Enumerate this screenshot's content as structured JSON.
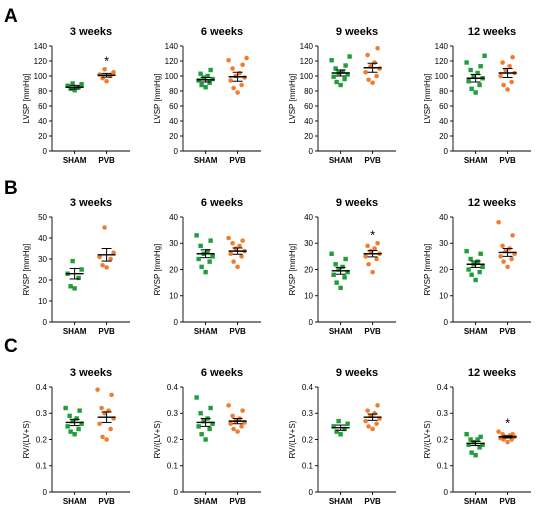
{
  "colors": {
    "sham": "#1f9e3a",
    "pvb": "#f07d2e"
  },
  "panel_labels": [
    "A",
    "B",
    "C"
  ],
  "chart_data": [
    {
      "type": "scatter",
      "panel": "A",
      "title": "3 weeks",
      "ylabel": "LVSP [mmHg]",
      "ylim": [
        0,
        140
      ],
      "yticks": [
        0,
        20,
        40,
        60,
        80,
        100,
        120,
        140
      ],
      "categories": [
        "SHAM",
        "PVB"
      ],
      "series": [
        {
          "category": "SHAM",
          "values": [
            81,
            83,
            85,
            87,
            89,
            90
          ],
          "mean": 85,
          "sem": 2.5
        },
        {
          "category": "PVB",
          "values": [
            93,
            97,
            100,
            102,
            105,
            109
          ],
          "mean": 101,
          "sem": 2.5
        }
      ],
      "annotation": "*"
    },
    {
      "type": "scatter",
      "panel": "A",
      "title": "6 weeks",
      "ylabel": "LVSP [mmHg]",
      "ylim": [
        0,
        140
      ],
      "yticks": [
        0,
        20,
        40,
        60,
        80,
        100,
        120,
        140
      ],
      "categories": [
        "SHAM",
        "PVB"
      ],
      "series": [
        {
          "category": "SHAM",
          "values": [
            85,
            88,
            91,
            94,
            96,
            98,
            100,
            103,
            108
          ],
          "mean": 95,
          "sem": 3
        },
        {
          "category": "PVB",
          "values": [
            78,
            84,
            88,
            94,
            98,
            100,
            104,
            110,
            115,
            121,
            124
          ],
          "mean": 99,
          "sem": 6
        }
      ],
      "annotation": ""
    },
    {
      "type": "scatter",
      "panel": "A",
      "title": "9 weeks",
      "ylabel": "LVSP [mmHg]",
      "ylim": [
        0,
        140
      ],
      "yticks": [
        0,
        20,
        40,
        60,
        80,
        100,
        120,
        140
      ],
      "categories": [
        "SHAM",
        "PVB"
      ],
      "series": [
        {
          "category": "SHAM",
          "values": [
            88,
            92,
            96,
            99,
            102,
            104,
            106,
            110,
            114,
            121,
            126
          ],
          "mean": 104,
          "sem": 4
        },
        {
          "category": "PVB",
          "values": [
            91,
            95,
            100,
            105,
            110,
            113,
            118,
            128,
            137
          ],
          "mean": 111,
          "sem": 6
        }
      ],
      "annotation": ""
    },
    {
      "type": "scatter",
      "panel": "A",
      "title": "12 weeks",
      "ylabel": "LVSP [mmHg]",
      "ylim": [
        0,
        140
      ],
      "yticks": [
        0,
        20,
        40,
        60,
        80,
        100,
        120,
        140
      ],
      "categories": [
        "SHAM",
        "PVB"
      ],
      "series": [
        {
          "category": "SHAM",
          "values": [
            78,
            83,
            88,
            93,
            97,
            100,
            104,
            108,
            113,
            118,
            127
          ],
          "mean": 97,
          "sem": 5
        },
        {
          "category": "PVB",
          "values": [
            82,
            88,
            92,
            100,
            104,
            108,
            113,
            118,
            125
          ],
          "mean": 104,
          "sem": 6
        }
      ],
      "annotation": ""
    },
    {
      "type": "scatter",
      "panel": "B",
      "title": "3 weeks",
      "ylabel": "RVSP [mmHg]",
      "ylim": [
        0,
        50
      ],
      "yticks": [
        0,
        10,
        20,
        30,
        40,
        50
      ],
      "categories": [
        "SHAM",
        "PVB"
      ],
      "series": [
        {
          "category": "SHAM",
          "values": [
            16,
            17,
            21,
            23,
            25,
            29
          ],
          "mean": 23,
          "sem": 2.5
        },
        {
          "category": "PVB",
          "values": [
            26,
            27,
            30,
            31,
            33,
            45
          ],
          "mean": 32,
          "sem": 3
        }
      ],
      "annotation": ""
    },
    {
      "type": "scatter",
      "panel": "B",
      "title": "6 weeks",
      "ylabel": "RVSP [mmHg]",
      "ylim": [
        0,
        40
      ],
      "yticks": [
        0,
        10,
        20,
        30,
        40
      ],
      "categories": [
        "SHAM",
        "PVB"
      ],
      "series": [
        {
          "category": "SHAM",
          "values": [
            19,
            21,
            23,
            24,
            25,
            26,
            27,
            29,
            31,
            33
          ],
          "mean": 26,
          "sem": 1.5
        },
        {
          "category": "PVB",
          "values": [
            21,
            23,
            25,
            26,
            27,
            28,
            29,
            30,
            31,
            32
          ],
          "mean": 27,
          "sem": 1.2
        }
      ],
      "annotation": ""
    },
    {
      "type": "scatter",
      "panel": "B",
      "title": "9 weeks",
      "ylabel": "RVSP [mmHg]",
      "ylim": [
        0,
        40
      ],
      "yticks": [
        0,
        10,
        20,
        30,
        40
      ],
      "categories": [
        "SHAM",
        "PVB"
      ],
      "series": [
        {
          "category": "SHAM",
          "values": [
            13,
            15,
            17,
            18,
            19,
            20,
            21,
            22,
            24,
            26
          ],
          "mean": 19.5,
          "sem": 1.3
        },
        {
          "category": "PVB",
          "values": [
            19,
            22,
            24,
            25,
            26,
            27,
            28,
            29,
            30
          ],
          "mean": 26,
          "sem": 1.2
        }
      ],
      "annotation": "*"
    },
    {
      "type": "scatter",
      "panel": "B",
      "title": "12 weeks",
      "ylabel": "RVSP [mmHg]",
      "ylim": [
        0,
        40
      ],
      "yticks": [
        0,
        10,
        20,
        30,
        40
      ],
      "categories": [
        "SHAM",
        "PVB"
      ],
      "series": [
        {
          "category": "SHAM",
          "values": [
            16,
            18,
            19,
            20,
            21,
            22,
            23,
            24,
            26,
            27
          ],
          "mean": 22,
          "sem": 1.2
        },
        {
          "category": "PVB",
          "values": [
            21,
            23,
            24,
            25,
            26,
            27,
            28,
            29,
            33,
            38
          ],
          "mean": 26.5,
          "sem": 1.5
        }
      ],
      "annotation": ""
    },
    {
      "type": "scatter",
      "panel": "C",
      "title": "3 weeks",
      "ylabel": "RV/(LV+S)",
      "ylim": [
        0,
        0.4
      ],
      "yticks": [
        0,
        0.1,
        0.2,
        0.3,
        0.4
      ],
      "categories": [
        "SHAM",
        "PVB"
      ],
      "series": [
        {
          "category": "SHAM",
          "values": [
            0.22,
            0.23,
            0.24,
            0.25,
            0.26,
            0.27,
            0.28,
            0.29,
            0.31,
            0.32
          ],
          "mean": 0.265,
          "sem": 0.012
        },
        {
          "category": "PVB",
          "values": [
            0.2,
            0.21,
            0.24,
            0.26,
            0.28,
            0.3,
            0.31,
            0.32,
            0.37,
            0.39
          ],
          "mean": 0.285,
          "sem": 0.02
        }
      ],
      "annotation": ""
    },
    {
      "type": "scatter",
      "panel": "C",
      "title": "6 weeks",
      "ylabel": "RV/(LV+S)",
      "ylim": [
        0,
        0.4
      ],
      "yticks": [
        0,
        0.1,
        0.2,
        0.3,
        0.4
      ],
      "categories": [
        "SHAM",
        "PVB"
      ],
      "series": [
        {
          "category": "SHAM",
          "values": [
            0.2,
            0.22,
            0.24,
            0.25,
            0.26,
            0.27,
            0.28,
            0.3,
            0.32,
            0.36
          ],
          "mean": 0.265,
          "sem": 0.015
        },
        {
          "category": "PVB",
          "values": [
            0.23,
            0.24,
            0.25,
            0.26,
            0.265,
            0.27,
            0.28,
            0.29,
            0.31,
            0.33
          ],
          "mean": 0.27,
          "sem": 0.01
        }
      ],
      "annotation": ""
    },
    {
      "type": "scatter",
      "panel": "C",
      "title": "9 weeks",
      "ylabel": "RV/(LV+S)",
      "ylim": [
        0,
        0.4
      ],
      "yticks": [
        0,
        0.1,
        0.2,
        0.3,
        0.4
      ],
      "categories": [
        "SHAM",
        "PVB"
      ],
      "series": [
        {
          "category": "SHAM",
          "values": [
            0.22,
            0.23,
            0.24,
            0.25,
            0.26,
            0.27
          ],
          "mean": 0.245,
          "sem": 0.01
        },
        {
          "category": "PVB",
          "values": [
            0.24,
            0.25,
            0.26,
            0.27,
            0.28,
            0.29,
            0.3,
            0.31,
            0.33
          ],
          "mean": 0.285,
          "sem": 0.012
        }
      ],
      "annotation": ""
    },
    {
      "type": "scatter",
      "panel": "C",
      "title": "12 weeks",
      "ylabel": "RV/(LV+S)",
      "ylim": [
        0,
        0.4
      ],
      "yticks": [
        0,
        0.1,
        0.2,
        0.3,
        0.4
      ],
      "categories": [
        "SHAM",
        "PVB"
      ],
      "series": [
        {
          "category": "SHAM",
          "values": [
            0.14,
            0.15,
            0.17,
            0.18,
            0.18,
            0.19,
            0.2,
            0.2,
            0.21,
            0.22
          ],
          "mean": 0.185,
          "sem": 0.008
        },
        {
          "category": "PVB",
          "values": [
            0.19,
            0.2,
            0.2,
            0.205,
            0.21,
            0.21,
            0.215,
            0.22,
            0.22,
            0.23
          ],
          "mean": 0.21,
          "sem": 0.004
        }
      ],
      "annotation": "*"
    }
  ]
}
